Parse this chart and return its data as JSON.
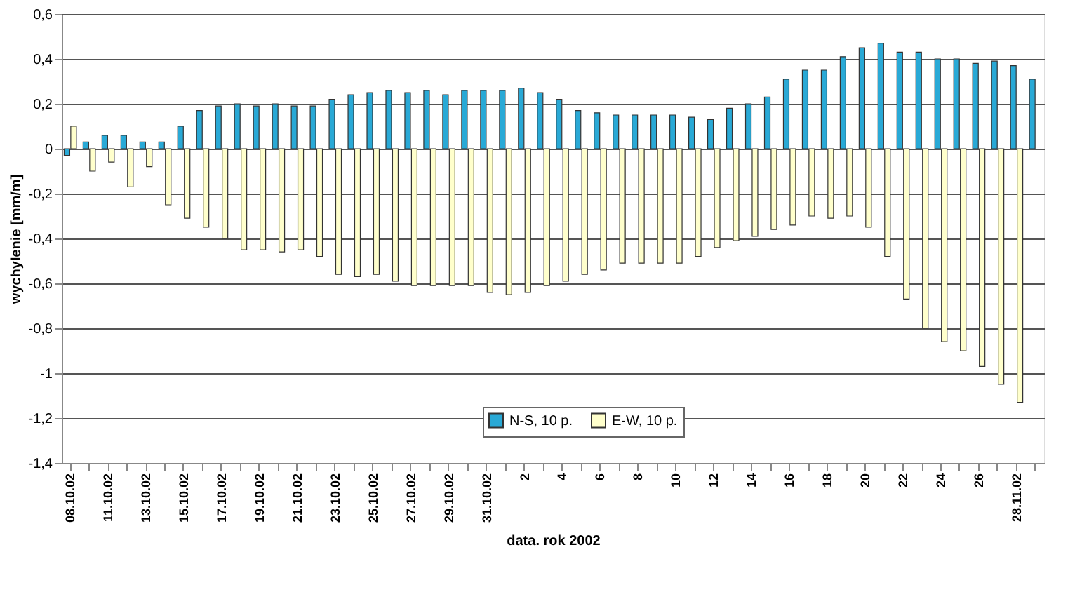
{
  "chart_data": {
    "type": "bar",
    "xlabel": "data. rok 2002",
    "ylabel": "wychylenie [mm/m]",
    "categories": [
      "08.10.02",
      null,
      "11.10.02",
      null,
      "13.10.02",
      null,
      "15.10.02",
      null,
      "17.10.02",
      null,
      "19.10.02",
      null,
      "21.10.02",
      null,
      "23.10.02",
      null,
      "25.10.02",
      null,
      "27.10.02",
      null,
      "29.10.02",
      null,
      "31.10.02",
      null,
      "2",
      null,
      "4",
      null,
      "6",
      null,
      "8",
      null,
      "10",
      null,
      "12",
      null,
      "14",
      null,
      "16",
      null,
      "18",
      null,
      "20",
      null,
      "22",
      null,
      "24",
      null,
      "26",
      null,
      "28.11.02",
      null
    ],
    "series": [
      {
        "name": "N-S, 10 p.",
        "color": "#29a9d6",
        "values": [
          -0.03,
          0.03,
          0.06,
          0.06,
          0.03,
          0.03,
          0.1,
          0.17,
          0.19,
          0.2,
          0.19,
          0.2,
          0.19,
          0.19,
          0.22,
          0.24,
          0.25,
          0.26,
          0.25,
          0.26,
          0.24,
          0.26,
          0.26,
          0.26,
          0.27,
          0.25,
          0.22,
          0.17,
          0.16,
          0.15,
          0.15,
          0.15,
          0.15,
          0.14,
          0.13,
          0.18,
          0.2,
          0.23,
          0.31,
          0.35,
          0.35,
          0.41,
          0.45,
          0.47,
          0.43,
          0.43,
          0.4,
          0.4,
          0.38,
          0.39,
          0.37,
          0.31
        ]
      },
      {
        "name": "E-W, 10 p.",
        "color": "#ffffcc",
        "values": [
          0.1,
          -0.1,
          -0.06,
          -0.17,
          -0.08,
          -0.25,
          -0.31,
          -0.35,
          -0.4,
          -0.45,
          -0.45,
          -0.46,
          -0.45,
          -0.48,
          -0.56,
          -0.57,
          -0.56,
          -0.59,
          -0.61,
          -0.61,
          -0.61,
          -0.61,
          -0.64,
          -0.65,
          -0.64,
          -0.61,
          -0.59,
          -0.56,
          -0.54,
          -0.51,
          -0.51,
          -0.51,
          -0.51,
          -0.48,
          -0.44,
          -0.41,
          -0.39,
          -0.36,
          -0.34,
          -0.3,
          -0.31,
          -0.3,
          -0.35,
          -0.48,
          -0.67,
          -0.8,
          -0.86,
          -0.9,
          -0.97,
          -1.05,
          -1.13,
          null
        ]
      }
    ],
    "ylim": [
      -1.4,
      0.6
    ],
    "yticks": [
      {
        "value": -1.4,
        "label": "-1,4"
      },
      {
        "value": -1.2,
        "label": "-1,2"
      },
      {
        "value": -1,
        "label": "-1"
      },
      {
        "value": -0.8,
        "label": "-0,8"
      },
      {
        "value": -0.6,
        "label": "-0,6"
      },
      {
        "value": -0.4,
        "label": "-0,4"
      },
      {
        "value": -0.2,
        "label": "-0,2"
      },
      {
        "value": 0,
        "label": "0"
      },
      {
        "value": 0.2,
        "label": "0,2"
      },
      {
        "value": 0.4,
        "label": "0,4"
      },
      {
        "value": 0.6,
        "label": "0,6"
      }
    ],
    "grid": "y",
    "legend": "bottom"
  }
}
